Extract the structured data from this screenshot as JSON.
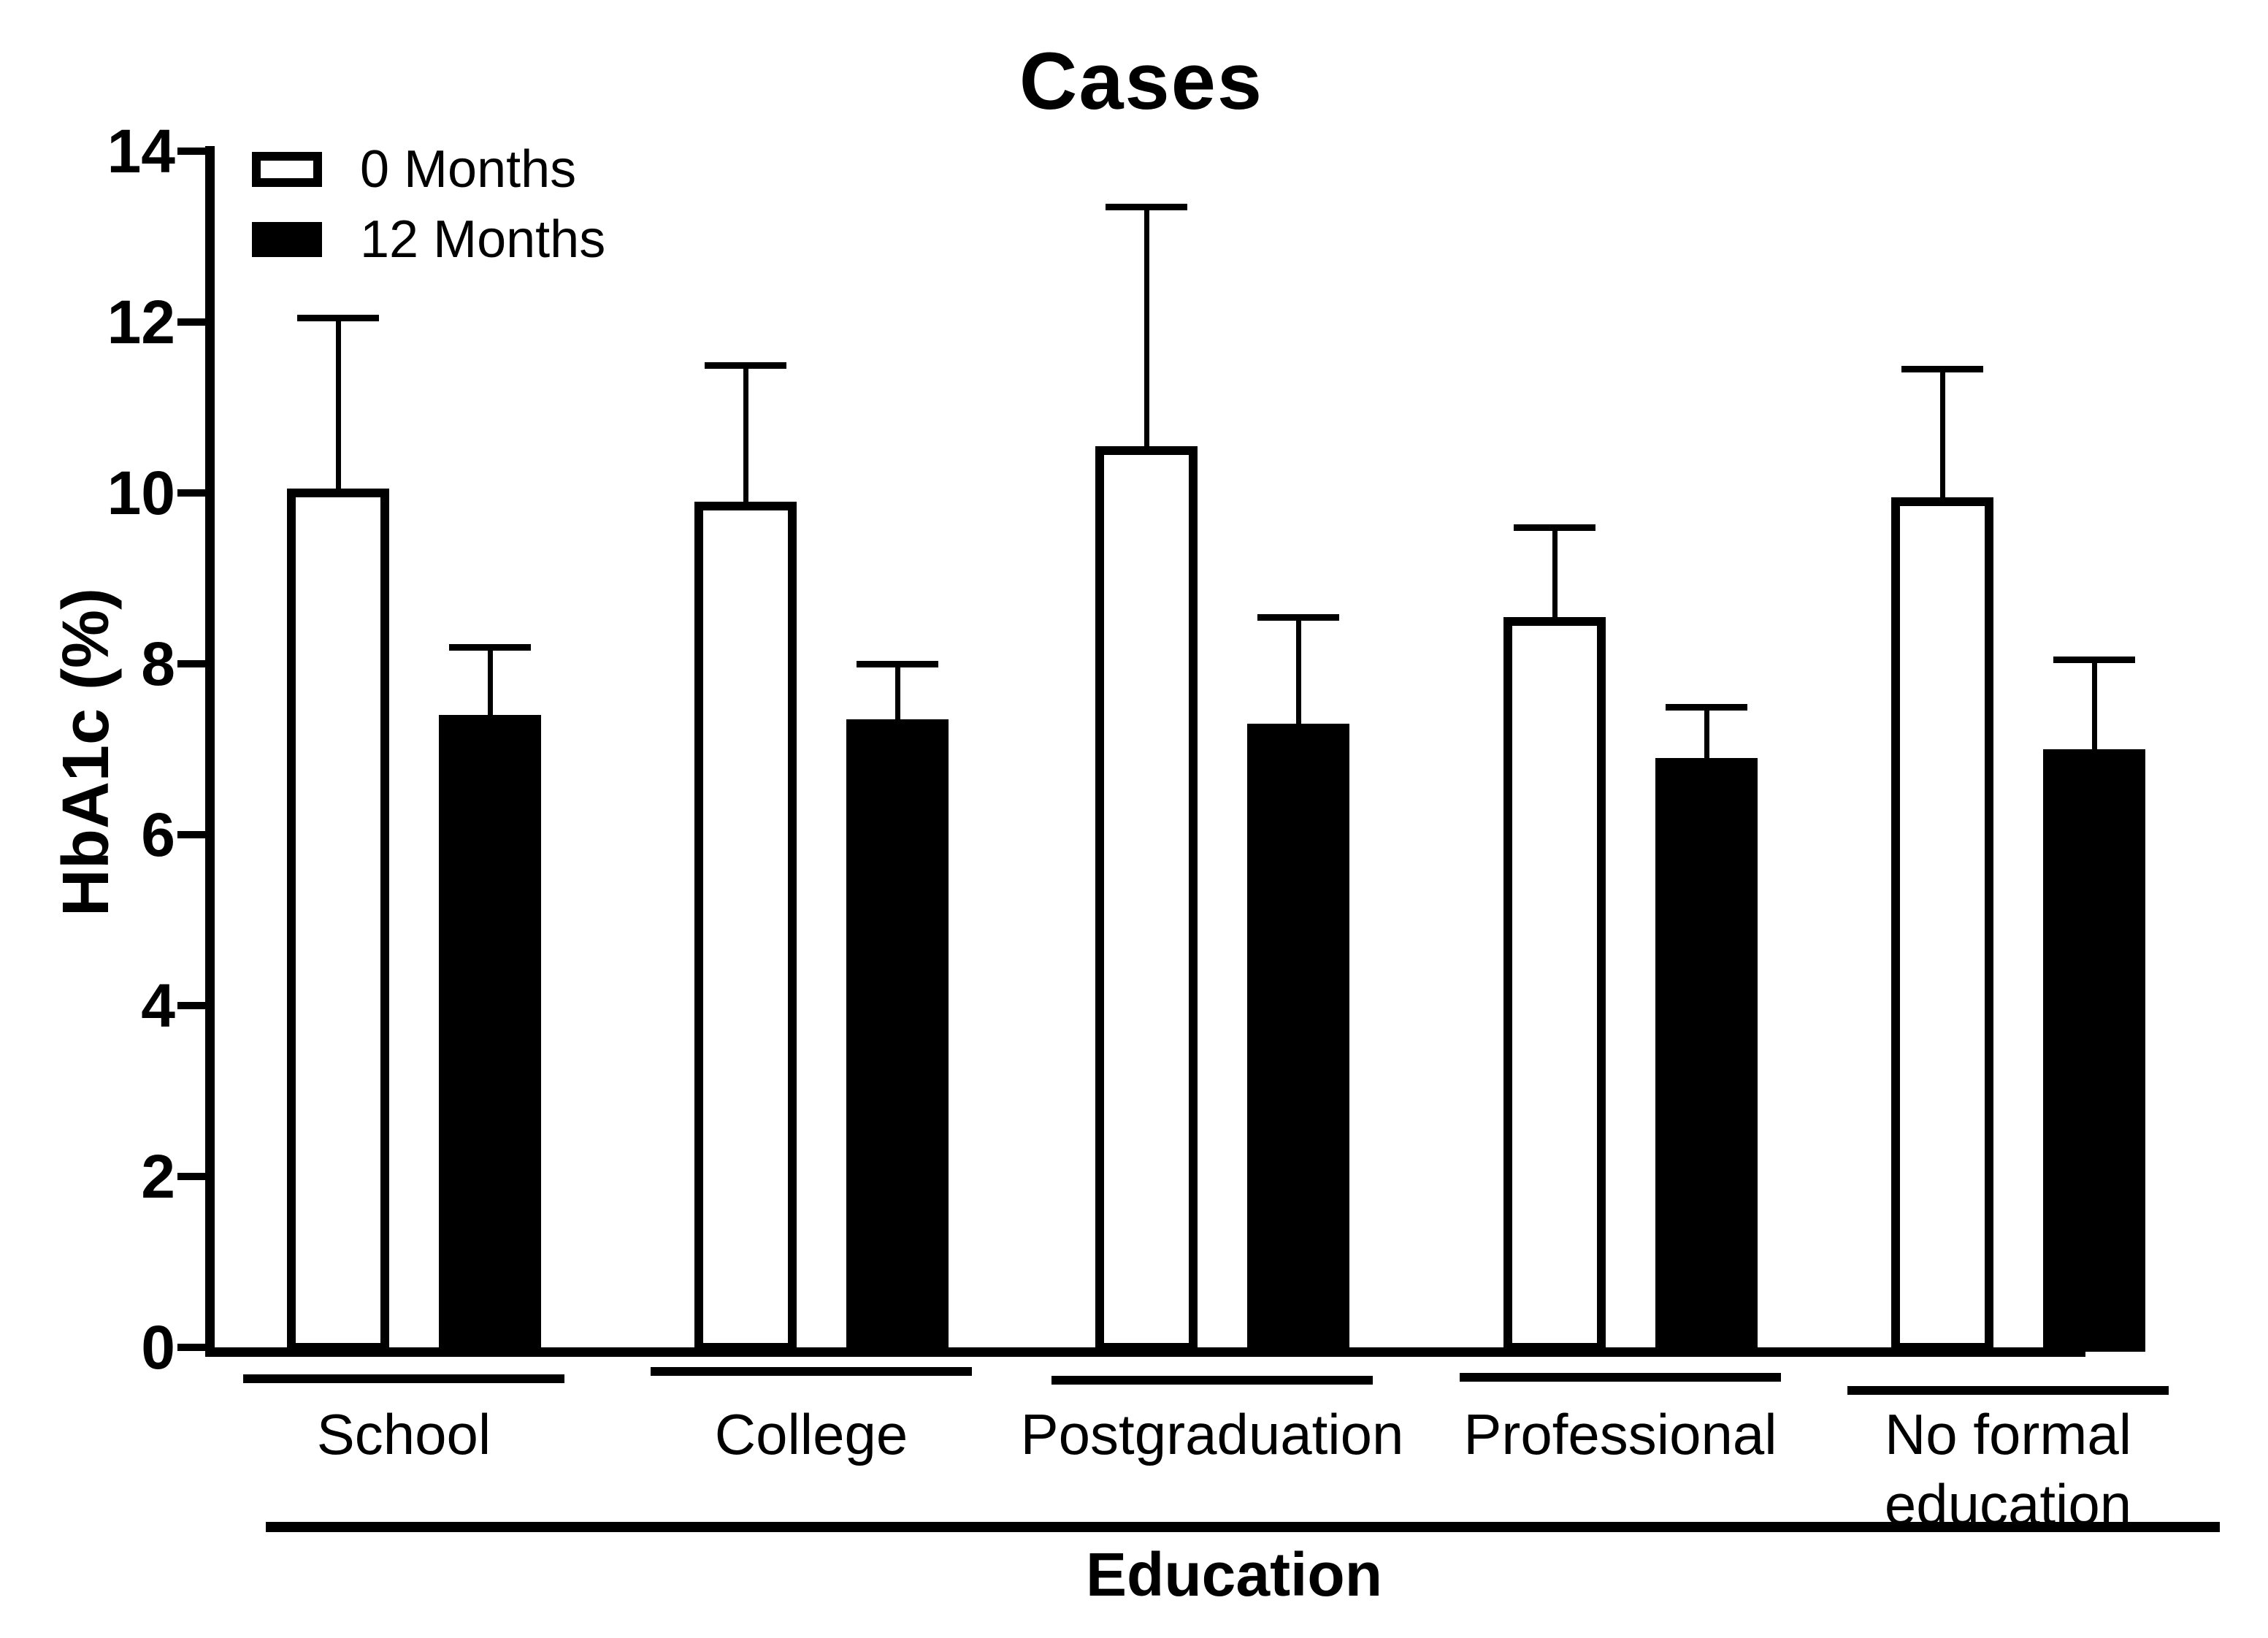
{
  "title": "Cases",
  "axes": {
    "y_label": "HbA1c (%)",
    "x_label": "Education",
    "y_ticks": [
      0,
      2,
      4,
      6,
      8,
      10,
      12,
      14
    ],
    "ylim": [
      0,
      14
    ]
  },
  "legend": {
    "items": [
      {
        "label": "0 Months",
        "fill": "#ffffff"
      },
      {
        "label": "12 Months",
        "fill": "#000000"
      }
    ]
  },
  "colors": {
    "foreground": "#000000",
    "background": "#ffffff"
  },
  "chart_data": {
    "type": "bar",
    "title": "Cases",
    "xlabel": "Education",
    "ylabel": "HbA1c (%)",
    "ylim": [
      0,
      14
    ],
    "yticks": [
      0,
      2,
      4,
      6,
      8,
      10,
      12,
      14
    ],
    "grid": false,
    "legend_position": "top-left",
    "error_bars": "upper whiskers with caps",
    "categories": [
      "School",
      "College",
      "Postgraduation",
      "Professional",
      "No formal education"
    ],
    "series": [
      {
        "name": "0 Months",
        "fill": "#ffffff",
        "values": [
          10.05,
          9.9,
          10.55,
          8.55,
          9.95
        ],
        "error_up": [
          2.0,
          1.6,
          2.8,
          1.05,
          1.5
        ]
      },
      {
        "name": "12 Months",
        "fill": "#000000",
        "values": [
          7.4,
          7.35,
          7.3,
          6.9,
          7.0
        ],
        "error_up": [
          0.8,
          0.65,
          1.25,
          0.6,
          1.05
        ]
      }
    ]
  }
}
